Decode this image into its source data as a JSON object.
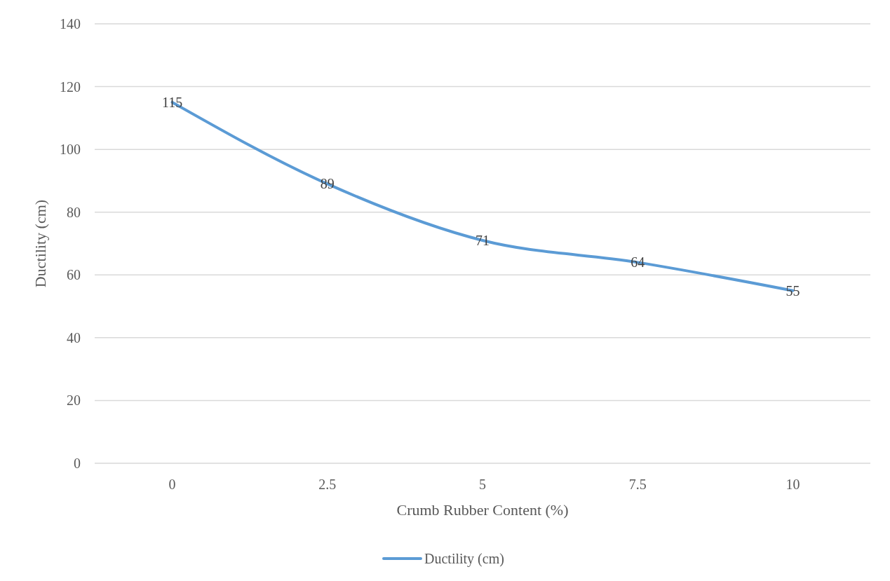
{
  "chart_data": {
    "type": "line",
    "xlabel": "Crumb Rubber Content (%)",
    "ylabel": "Ductility (cm)",
    "categories": [
      "0",
      "2.5",
      "5",
      "7.5",
      "10"
    ],
    "series": [
      {
        "name": "Ductility (cm)",
        "color": "#5b9bd5",
        "values": [
          115,
          89,
          71,
          64,
          55
        ]
      }
    ],
    "ylim": [
      0,
      140
    ],
    "yticks": [
      0,
      20,
      40,
      60,
      80,
      100,
      120,
      140
    ],
    "grid": "y",
    "legend": "bottom",
    "data_labels": true,
    "marker": "none",
    "line_style": "solid"
  }
}
